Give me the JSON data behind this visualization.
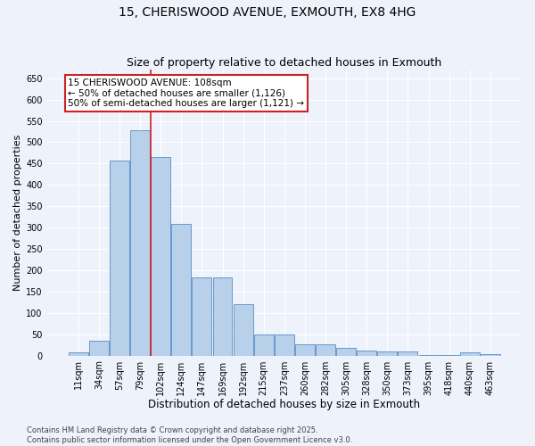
{
  "title": "15, CHERISWOOD AVENUE, EXMOUTH, EX8 4HG",
  "subtitle": "Size of property relative to detached houses in Exmouth",
  "xlabel": "Distribution of detached houses by size in Exmouth",
  "ylabel": "Number of detached properties",
  "categories": [
    "11sqm",
    "34sqm",
    "57sqm",
    "79sqm",
    "102sqm",
    "124sqm",
    "147sqm",
    "169sqm",
    "192sqm",
    "215sqm",
    "237sqm",
    "260sqm",
    "282sqm",
    "305sqm",
    "328sqm",
    "350sqm",
    "373sqm",
    "395sqm",
    "418sqm",
    "440sqm",
    "463sqm"
  ],
  "values": [
    7,
    35,
    457,
    528,
    465,
    308,
    184,
    184,
    120,
    50,
    50,
    27,
    27,
    18,
    12,
    9,
    9,
    2,
    2,
    7,
    4
  ],
  "bar_color": "#b8d0ea",
  "bar_edge_color": "#6699cc",
  "vline_x_index": 3.5,
  "vline_color": "#cc2222",
  "annotation_text": "15 CHERISWOOD AVENUE: 108sqm\n← 50% of detached houses are smaller (1,126)\n50% of semi-detached houses are larger (1,121) →",
  "annotation_box_color": "white",
  "annotation_box_edge_color": "#cc2222",
  "ylim": [
    0,
    670
  ],
  "yticks": [
    0,
    50,
    100,
    150,
    200,
    250,
    300,
    350,
    400,
    450,
    500,
    550,
    600,
    650
  ],
  "bg_color": "#eef2fb",
  "grid_color": "white",
  "footer": "Contains HM Land Registry data © Crown copyright and database right 2025.\nContains public sector information licensed under the Open Government Licence v3.0.",
  "title_fontsize": 10,
  "subtitle_fontsize": 9,
  "xlabel_fontsize": 8.5,
  "ylabel_fontsize": 8,
  "tick_fontsize": 7,
  "annotation_fontsize": 7.5,
  "footer_fontsize": 6
}
